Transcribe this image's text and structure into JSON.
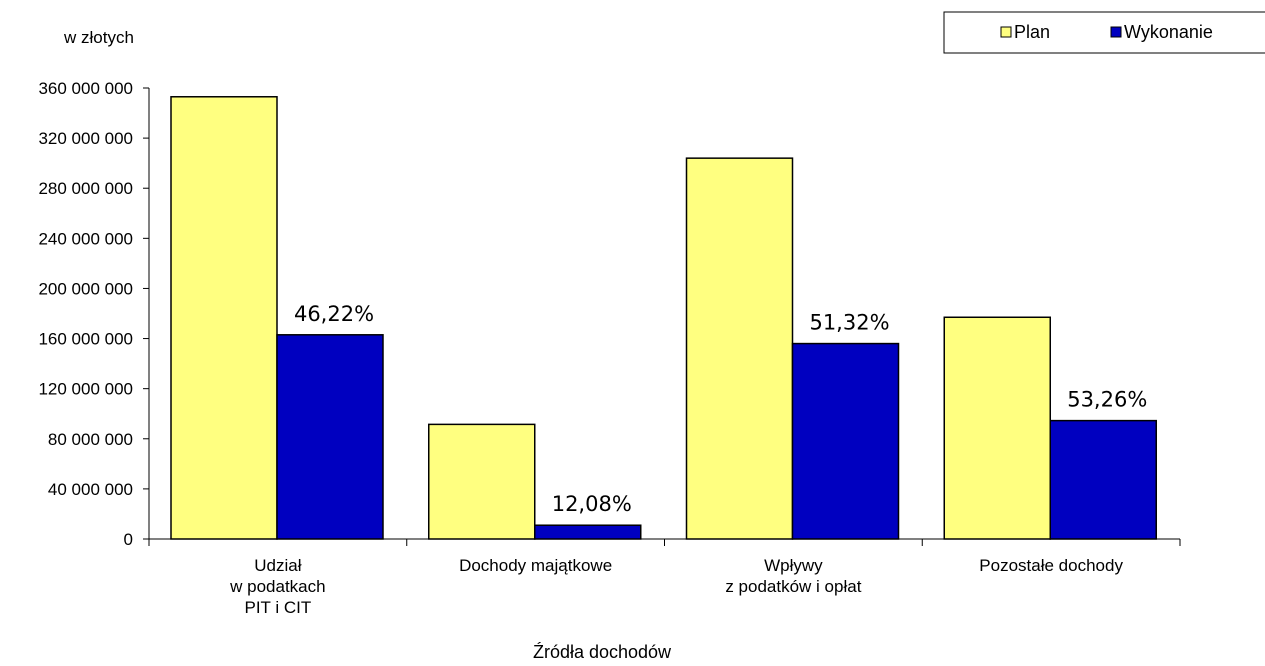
{
  "chart_data": {
    "type": "bar",
    "unit_label": "w złotych",
    "xlabel": "Źródła dochodów",
    "ylabel": "",
    "ylim": [
      0,
      360000000
    ],
    "yticks": [
      0,
      40000000,
      80000000,
      120000000,
      160000000,
      200000000,
      240000000,
      280000000,
      320000000,
      360000000
    ],
    "ytick_labels": [
      "0",
      "40 000 000",
      "80 000 000",
      "120 000 000",
      "160 000 000",
      "200 000 000",
      "240 000 000",
      "280 000 000",
      "320 000 000",
      "360 000 000"
    ],
    "categories": [
      [
        "Udział",
        "w podatkach",
        "PIT i CIT"
      ],
      [
        "Dochody majątkowe"
      ],
      [
        "Wpływy",
        "z podatków i opłat"
      ],
      [
        "Pozostałe dochody"
      ]
    ],
    "series": [
      {
        "name": "Plan",
        "color": "#FFFF80",
        "values": [
          353000000,
          91500000,
          304000000,
          177000000
        ]
      },
      {
        "name": "Wykonanie",
        "color": "#0000C0",
        "values": [
          163000000,
          11000000,
          156000000,
          94500000
        ]
      }
    ],
    "data_labels": [
      "46,22%",
      "12,08%",
      "51,32%",
      "53,26%"
    ],
    "grid": false,
    "legend_position": "top-right"
  }
}
